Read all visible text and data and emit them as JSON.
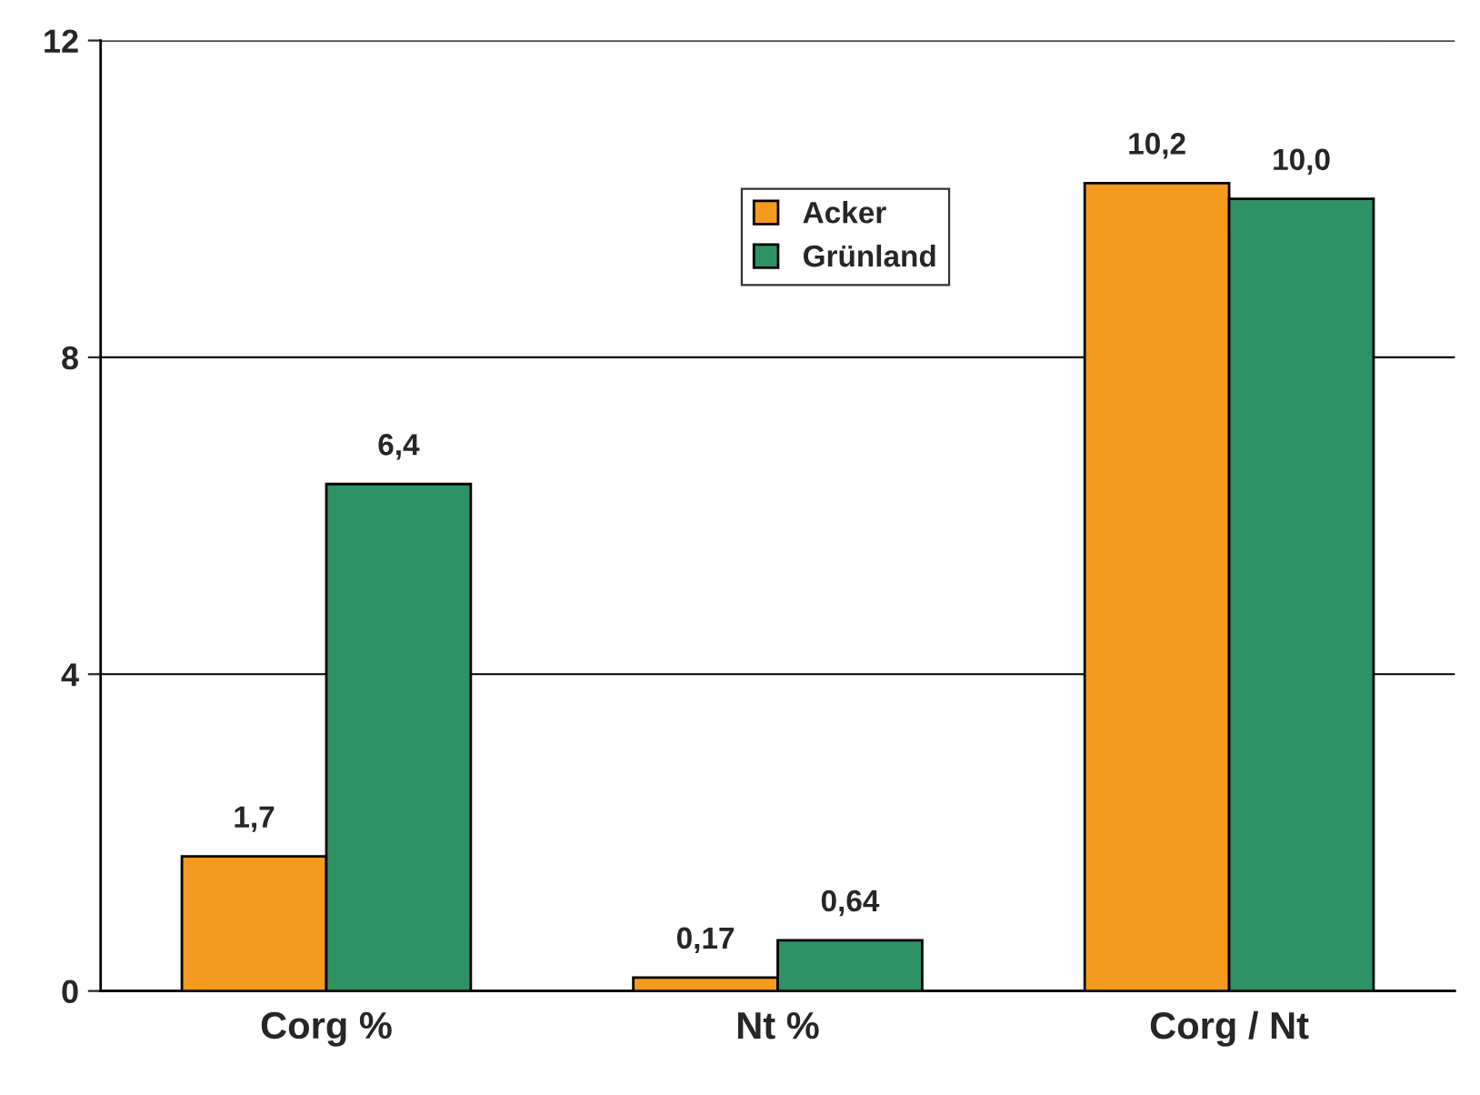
{
  "chart_data": {
    "type": "bar",
    "categories": [
      "Corg %",
      "Nt %",
      "Corg / Nt"
    ],
    "series": [
      {
        "name": "Acker",
        "color": "#f49a1e",
        "values": [
          1.7,
          0.17,
          10.2
        ],
        "value_labels": [
          "1,7",
          "0,17",
          "10,2"
        ]
      },
      {
        "name": "Grünland",
        "color": "#2e9265",
        "values": [
          6.4,
          0.64,
          10.0
        ],
        "value_labels": [
          "6,4",
          "0,64",
          "10,0"
        ]
      }
    ],
    "ylim": [
      0,
      12
    ],
    "yticks": [
      0,
      4,
      8,
      12
    ],
    "grid": "y",
    "legend": "top center"
  }
}
